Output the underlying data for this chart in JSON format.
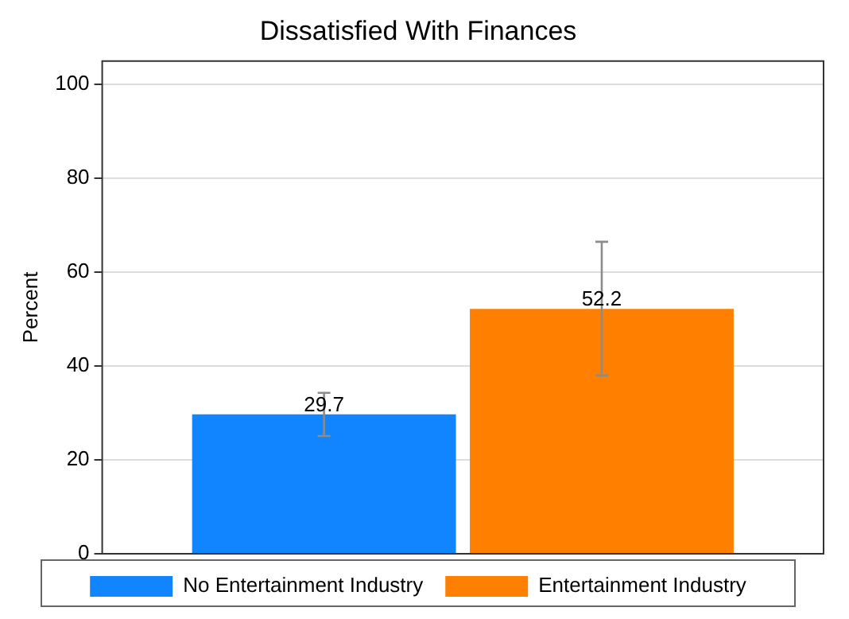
{
  "chart_data": {
    "type": "bar",
    "title": "Dissatisfied With Finances",
    "ylabel": "Percent",
    "categories": [
      null
    ],
    "series": [
      {
        "name": "No Entertainment Industry",
        "color": "#1185ff",
        "values": [
          29.7
        ],
        "errors": [
          [
            25.1,
            34.3
          ]
        ]
      },
      {
        "name": "Entertainment Industry",
        "color": "#ff8000",
        "values": [
          52.2
        ],
        "errors": [
          [
            38.0,
            66.5
          ]
        ]
      }
    ],
    "ylim": [
      0,
      105
    ],
    "yticks": [
      0,
      20,
      40,
      60,
      80,
      100
    ],
    "grid": "y",
    "legend": "bottom",
    "data_labels": true
  }
}
